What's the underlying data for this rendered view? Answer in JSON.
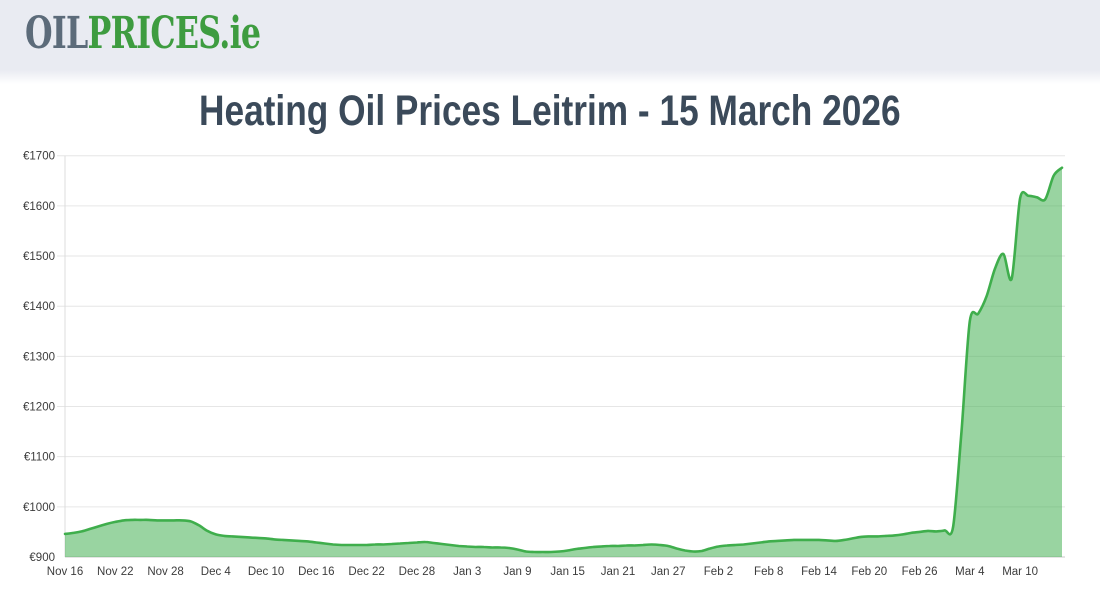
{
  "header": {
    "logo": {
      "part_gray": "OIL",
      "part_green": "PRICES",
      "suffix": ".ie"
    }
  },
  "title": "Heating Oil Prices Leitrim - 15 March 2026",
  "chart_data": {
    "type": "area",
    "title": "Heating Oil Prices Leitrim - 15 March 2026",
    "currency_prefix": "€",
    "ylim": [
      900,
      1700
    ],
    "y_tick_step": 100,
    "y_tick_labels": [
      "€900",
      "€1000",
      "€1100",
      "€1200",
      "€1300",
      "€1400",
      "€1500",
      "€1600",
      "€1700"
    ],
    "x_tick_labels": [
      "Nov 16",
      "Nov 22",
      "Nov 28",
      "Dec 4",
      "Dec 10",
      "Dec 16",
      "Dec 22",
      "Dec 28",
      "Jan 3",
      "Jan 9",
      "Jan 15",
      "Jan 21",
      "Jan 27",
      "Feb 2",
      "Feb 8",
      "Feb 14",
      "Feb 20",
      "Feb 26",
      "Mar 4",
      "Mar 10"
    ],
    "x_tick_interval_days": 6,
    "x_start": "Nov 16",
    "x_end": "Mar 15",
    "grid": true,
    "legend": false,
    "values": [
      946,
      948,
      951,
      956,
      961,
      966,
      970,
      973,
      974,
      974,
      974,
      973,
      973,
      973,
      973,
      971,
      963,
      952,
      945,
      942,
      941,
      940,
      939,
      938,
      937,
      935,
      934,
      933,
      932,
      931,
      929,
      927,
      925,
      924,
      924,
      924,
      924,
      925,
      925,
      926,
      927,
      928,
      929,
      930,
      928,
      926,
      924,
      922,
      921,
      920,
      920,
      919,
      919,
      918,
      915,
      911,
      910,
      910,
      910,
      911,
      913,
      916,
      918,
      920,
      921,
      922,
      922,
      923,
      923,
      924,
      925,
      924,
      922,
      917,
      913,
      911,
      912,
      917,
      921,
      923,
      924,
      925,
      927,
      929,
      931,
      932,
      933,
      934,
      934,
      934,
      934,
      933,
      932,
      934,
      937,
      940,
      941,
      941,
      942,
      943,
      945,
      948,
      950,
      952,
      951,
      953,
      960,
      1150,
      1370,
      1385,
      1420,
      1475,
      1504,
      1455,
      1615,
      1620,
      1617,
      1613,
      1660,
      1676
    ],
    "colors": {
      "line": "#3fae4c",
      "fill_rgba": "rgba(69,176,83,0.55)",
      "gridline": "#e6e6e6",
      "axis_line": "#c9c9c9",
      "y_axis_line": "#dcdcdc",
      "tick_text": "#3c3c3c",
      "title_text": "#3b4a5a",
      "header_bg": "#e9ebf2",
      "logo_gray": "#5c6b7a",
      "logo_green": "#3e9c40"
    }
  }
}
